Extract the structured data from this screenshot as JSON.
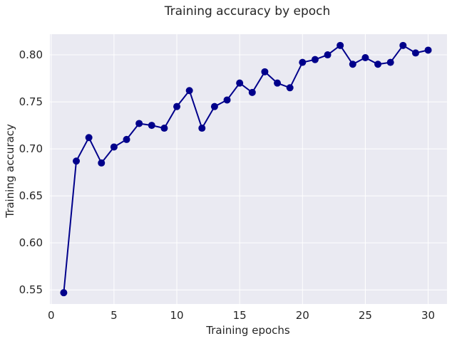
{
  "chart_data": {
    "type": "line",
    "title": "Training accuracy by epoch",
    "xlabel": "Training epochs",
    "ylabel": "Training accuracy",
    "xlim": [
      -0.1,
      31.5
    ],
    "ylim": [
      0.535,
      0.822
    ],
    "xticks": [
      0,
      5,
      10,
      15,
      20,
      25,
      30
    ],
    "xtick_labels": [
      "0",
      "5",
      "10",
      "15",
      "20",
      "25",
      "30"
    ],
    "yticks": [
      0.55,
      0.6,
      0.65,
      0.7,
      0.75,
      0.8
    ],
    "ytick_labels": [
      "0.55",
      "0.60",
      "0.65",
      "0.70",
      "0.75",
      "0.80"
    ],
    "grid": true,
    "background": "#eaeaf2",
    "grid_color": "#ffffff",
    "series": [
      {
        "color": "#00008b",
        "marker": "circle",
        "x": [
          1,
          2,
          3,
          4,
          5,
          6,
          7,
          8,
          9,
          10,
          11,
          12,
          13,
          14,
          15,
          16,
          17,
          18,
          19,
          20,
          21,
          22,
          23,
          24,
          25,
          26,
          27,
          28,
          29,
          30
        ],
        "values": [
          0.547,
          0.687,
          0.712,
          0.685,
          0.702,
          0.71,
          0.727,
          0.725,
          0.722,
          0.745,
          0.762,
          0.722,
          0.745,
          0.752,
          0.77,
          0.76,
          0.782,
          0.77,
          0.765,
          0.792,
          0.795,
          0.8,
          0.81,
          0.79,
          0.797,
          0.79,
          0.792,
          0.81,
          0.802,
          0.805
        ]
      }
    ]
  }
}
